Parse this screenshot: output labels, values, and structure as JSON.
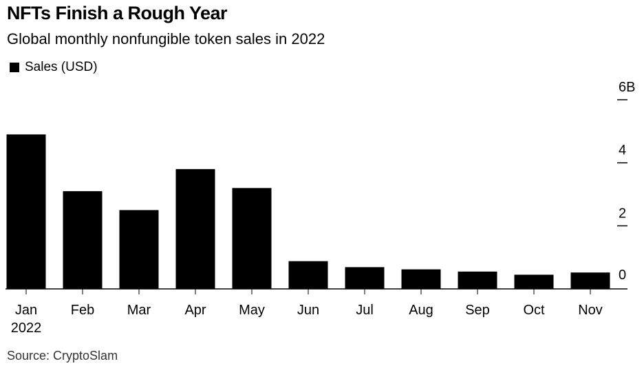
{
  "title": "NFTs Finish a Rough Year",
  "subtitle": "Global monthly nonfungible token sales in 2022",
  "legend": {
    "label": "Sales (USD)",
    "color": "#000000"
  },
  "source": "Source: CryptoSlam",
  "chart_data": {
    "type": "bar",
    "categories": [
      "Jan",
      "Feb",
      "Mar",
      "Apr",
      "May",
      "Jun",
      "Jul",
      "Aug",
      "Sep",
      "Oct",
      "Nov"
    ],
    "category_sublabels": {
      "Jan": "2022"
    },
    "series": [
      {
        "name": "Sales (USD)",
        "color": "#000000",
        "values": [
          4.9,
          3.1,
          2.5,
          3.8,
          3.2,
          0.88,
          0.69,
          0.62,
          0.55,
          0.45,
          0.52
        ]
      }
    ],
    "yticks": [
      0,
      2,
      4,
      6
    ],
    "ytick_labels": [
      "0",
      "2",
      "4",
      "6B"
    ],
    "ylim": [
      0,
      6
    ],
    "y_axis_position": "right",
    "grid": false
  }
}
